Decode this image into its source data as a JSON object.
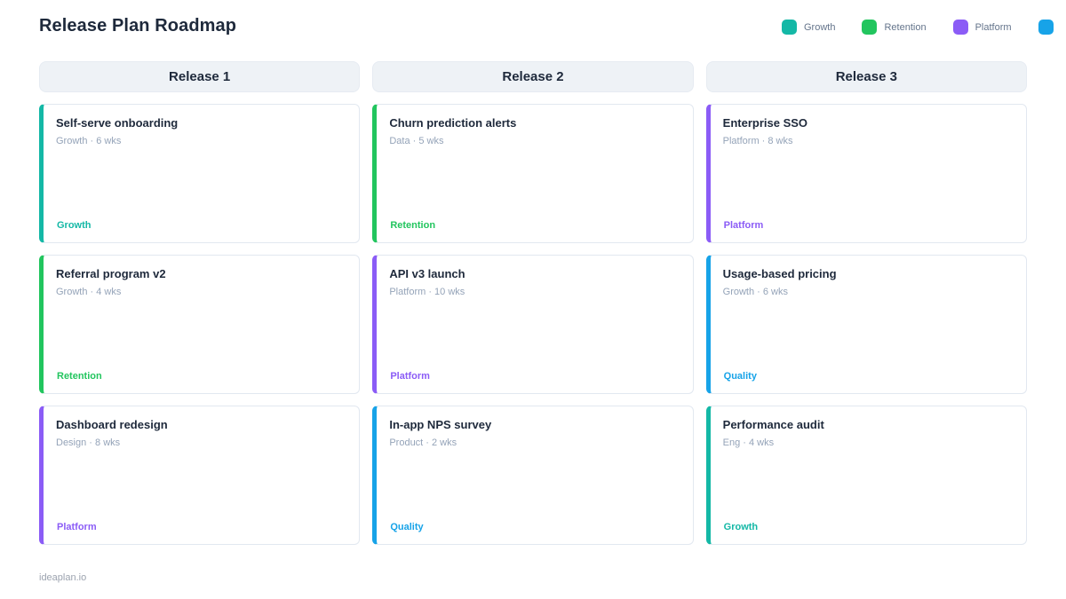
{
  "page": {
    "title": "Release Plan Roadmap",
    "footer": "ideaplan.io"
  },
  "legend": [
    {
      "label": "Growth",
      "color": "#14b8a6"
    },
    {
      "label": "Retention",
      "color": "#22c55e"
    },
    {
      "label": "Platform",
      "color": "#8b5cf6"
    },
    {
      "label": "",
      "color": "#17a3e8"
    }
  ],
  "tag_colors": {
    "Growth": "#14b8a6",
    "Retention": "#22c55e",
    "Platform": "#8b5cf6",
    "Quality": "#17a3e8"
  },
  "columns": [
    {
      "header": "Release 1",
      "cards": [
        {
          "title": "Self-serve onboarding",
          "meta": "Growth · 6 wks",
          "tag": "Growth",
          "color": "#14b8a6"
        },
        {
          "title": "Referral program v2",
          "meta": "Growth · 4 wks",
          "tag": "Retention",
          "color": "#22c55e"
        },
        {
          "title": "Dashboard redesign",
          "meta": "Design · 8 wks",
          "tag": "Platform",
          "color": "#8b5cf6"
        }
      ]
    },
    {
      "header": "Release 2",
      "cards": [
        {
          "title": "Churn prediction alerts",
          "meta": "Data · 5 wks",
          "tag": "Retention",
          "color": "#22c55e"
        },
        {
          "title": "API v3 launch",
          "meta": "Platform · 10 wks",
          "tag": "Platform",
          "color": "#8b5cf6"
        },
        {
          "title": "In-app NPS survey",
          "meta": "Product · 2 wks",
          "tag": "Quality",
          "color": "#17a3e8"
        }
      ]
    },
    {
      "header": "Release 3",
      "cards": [
        {
          "title": "Enterprise SSO",
          "meta": "Platform · 8 wks",
          "tag": "Platform",
          "color": "#8b5cf6"
        },
        {
          "title": "Usage-based pricing",
          "meta": "Growth · 6 wks",
          "tag": "Quality",
          "color": "#17a3e8"
        },
        {
          "title": "Performance audit",
          "meta": "Eng · 4 wks",
          "tag": "Growth",
          "color": "#14b8a6"
        }
      ]
    }
  ]
}
